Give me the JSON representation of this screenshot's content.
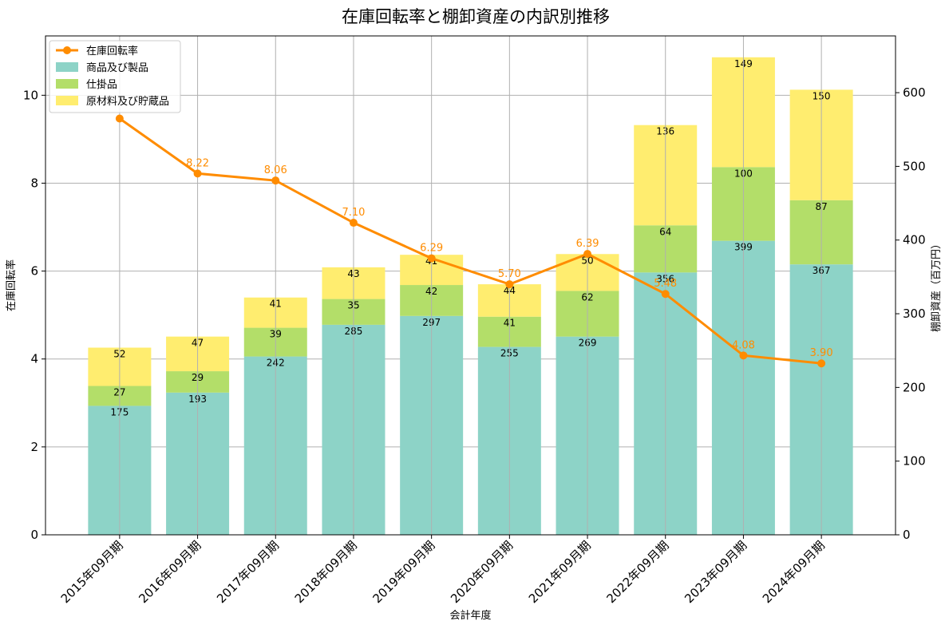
{
  "chart_data": {
    "type": "bar",
    "title": "在庫回転率と棚卸資産の内訳別推移",
    "xlabel": "会計年度",
    "ylabel_left": "在庫回転率",
    "ylabel_right": "棚卸資産（百万円）",
    "ylim_left": [
      0,
      11.35
    ],
    "ylim_right": [
      0,
      677
    ],
    "yticks_left": [
      0,
      2,
      4,
      6,
      8,
      10
    ],
    "yticks_right": [
      0,
      100,
      200,
      300,
      400,
      500,
      600
    ],
    "grid": true,
    "legend_position": "top-left",
    "categories": [
      "2015年09月期",
      "2016年09月期",
      "2017年09月期",
      "2018年09月期",
      "2019年09月期",
      "2020年09月期",
      "2021年09月期",
      "2022年09月期",
      "2023年09月期",
      "2024年09月期"
    ],
    "stacked_series": [
      {
        "name": "商品及び製品",
        "color": "#8dd3c7",
        "axis": "right",
        "values": [
          175,
          193,
          242,
          285,
          297,
          255,
          269,
          356,
          399,
          367
        ]
      },
      {
        "name": "仕掛品",
        "color": "#b3de69",
        "axis": "right",
        "values": [
          27,
          29,
          39,
          35,
          42,
          41,
          62,
          64,
          100,
          87
        ]
      },
      {
        "name": "原材料及び貯蔵品",
        "color": "#ffed6f",
        "axis": "right",
        "values": [
          52,
          47,
          41,
          43,
          41,
          44,
          50,
          136,
          149,
          150
        ]
      }
    ],
    "line_series": {
      "name": "在庫回転率",
      "color": "#ff8c00",
      "axis": "left",
      "values": [
        9.47,
        8.22,
        8.06,
        7.1,
        6.29,
        5.7,
        6.39,
        5.48,
        4.08,
        3.9
      ],
      "labels": [
        "",
        "8.22",
        "8.06",
        "7.10",
        "6.29",
        "5.70",
        "6.39",
        "5.48",
        "4.08",
        "3.90"
      ]
    }
  }
}
